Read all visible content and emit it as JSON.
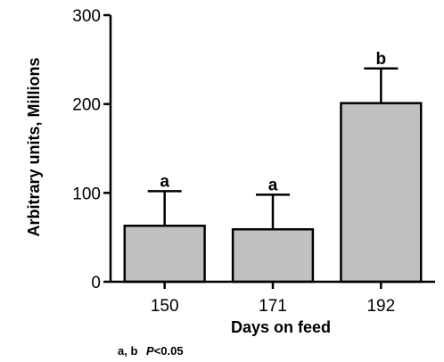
{
  "chart_data": {
    "type": "bar",
    "categories": [
      "150",
      "171",
      "192"
    ],
    "values": [
      63,
      59,
      201
    ],
    "errors": [
      39,
      39,
      39
    ],
    "significance_labels": [
      "a",
      "a",
      "b"
    ],
    "xlabel": "Days on feed",
    "ylabel": "Arbitrary units, Millions",
    "ylim": [
      0,
      300
    ],
    "yticks": [
      0,
      100,
      200,
      300
    ],
    "grid": false,
    "bar_color": "#c0c0c0",
    "footnote": {
      "letters": "a, b",
      "stat": "P",
      "threshold": "<0.05"
    }
  }
}
